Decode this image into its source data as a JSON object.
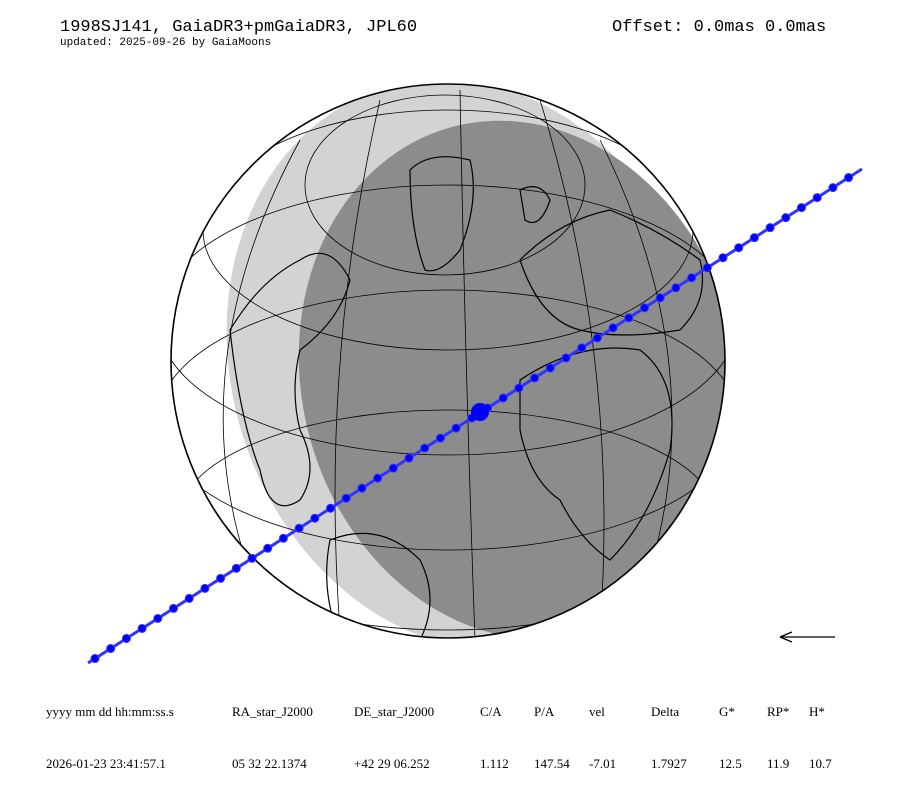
{
  "header": {
    "title": "1998SJ141, GaiaDR3+pmGaiaDR3, JPL60",
    "subtitle": "updated: 2025-09-26 by GaiaMoons",
    "offset": "Offset: 0.0mas 0.0mas"
  },
  "map": {
    "projection": "orthographic globe",
    "path_color": "#0000ff",
    "night_color": "#8c8c8c",
    "twilight_color": "#d3d3d3",
    "direction_arrow": "left-arrow-icon"
  },
  "table": {
    "headers": [
      "yyyy mm dd hh:mm:ss.s",
      "RA_star_J2000",
      "DE_star_J2000",
      "C/A",
      "P/A",
      "vel",
      "Delta",
      "G*",
      "RP*",
      "H*"
    ],
    "values": [
      "2026-01-23 23:41:57.1",
      "05 32 22.1374",
      "+42 29 06.252",
      "1.112",
      "147.54",
      "-7.01",
      "1.7927",
      "12.5",
      "11.9",
      "10.7"
    ]
  }
}
